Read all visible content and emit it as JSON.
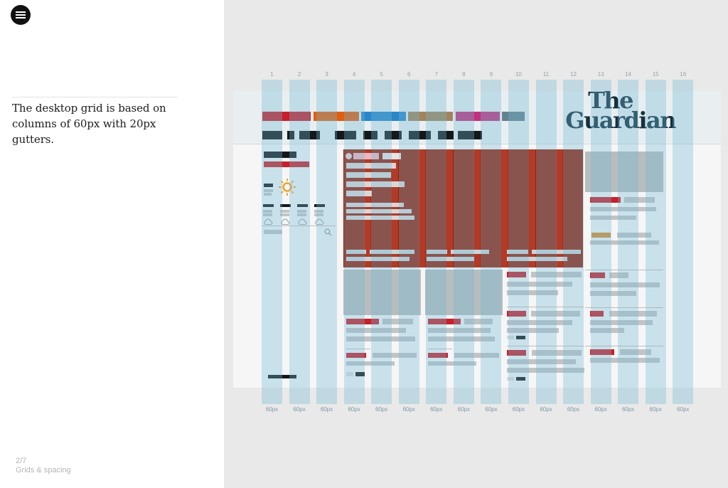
{
  "left_panel": {
    "description": "The desktop grid is based on columns of 60px with 20px gutters.",
    "pager": "2/7",
    "section_label": "Grids & spacing"
  },
  "artboard": {
    "logo_line1": "The",
    "logo_line2": "Guardian",
    "logo_color": "#15303f"
  },
  "grid": {
    "column_count": 16,
    "column_numbers": [
      "1",
      "2",
      "3",
      "4",
      "5",
      "6",
      "7",
      "8",
      "9",
      "10",
      "11",
      "12",
      "13",
      "14",
      "15",
      "16"
    ],
    "column_width_label": "60px",
    "gutter_label": "20px",
    "overlay_color": "rgba(115,186,210,0.34)"
  },
  "palette": {
    "news_red": "#c7202a",
    "opinion_orange": "#e05e10",
    "sport_blue": "#2a86c8",
    "culture_tan": "#a1845c",
    "lifestyle_pink": "#c2317c",
    "labs_slate": "#64828e",
    "dark_ink": "#14181a",
    "placeholder_gray": "#c0c4c5",
    "image_gray": "#b7bdbe",
    "highlight_muted": "#96200a",
    "highlight_bright": "#b23a26",
    "orange_accent": "#d98a31"
  },
  "icons": [
    "hamburger-icon",
    "sun-icon",
    "cloud-icon",
    "search-icon"
  ]
}
